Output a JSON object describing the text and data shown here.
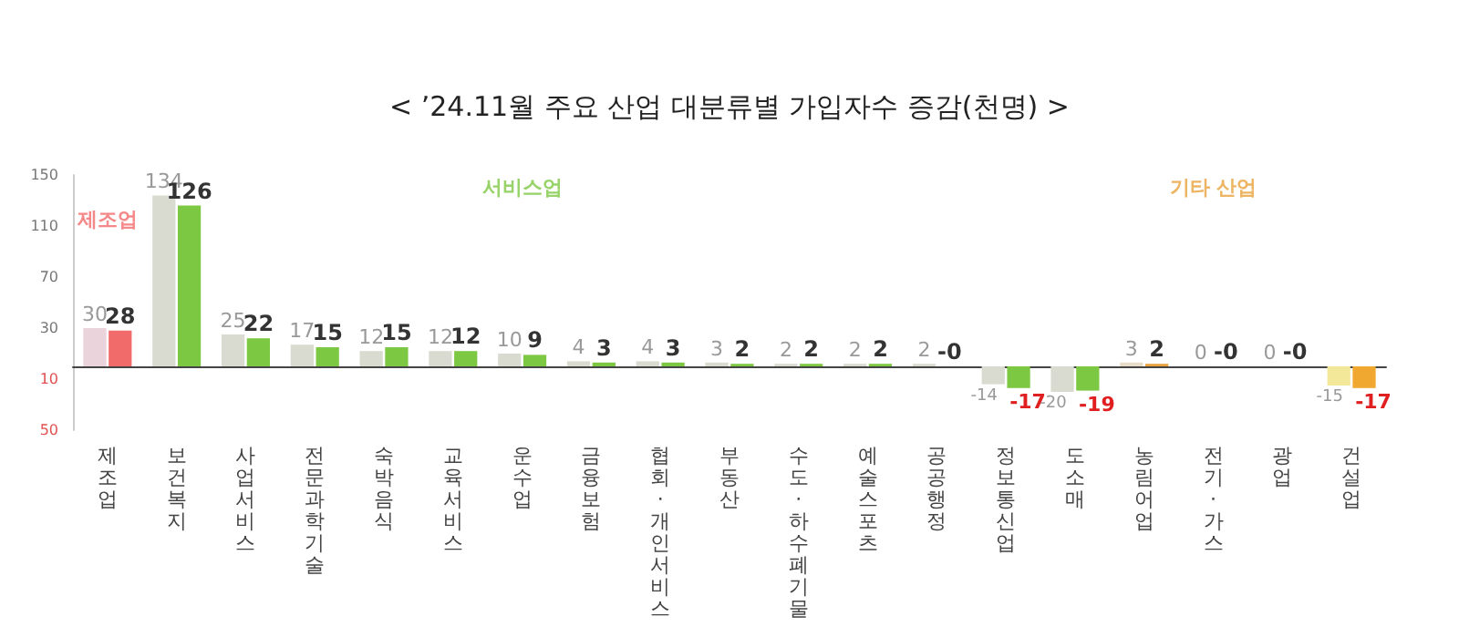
{
  "chart_data": {
    "type": "bar",
    "title": "< ’24.11월 주요 산업 대분류별 가입자수 증감(천명) >",
    "categories": [
      "제조업",
      "보건복지",
      "사업서비스",
      "전문과학기술",
      "숙박음식",
      "교육서비스",
      "운수업",
      "금융보험",
      "협회·개인서비스",
      "부동산",
      "수도·하수폐기물",
      "예술스포츠",
      "공공행정",
      "정보통신업",
      "도소매",
      "농림어업",
      "전기·가스",
      "광업",
      "건설업"
    ],
    "series": [
      {
        "values": [
          30,
          134,
          25,
          17,
          12,
          12,
          10,
          4,
          4,
          3,
          2,
          2,
          2,
          -14,
          -20,
          3,
          0,
          0,
          -15
        ],
        "colors": [
          "#ead3da",
          "#d9dbd0",
          "#d9dbd0",
          "#d9dbd0",
          "#d9dbd0",
          "#d9dbd0",
          "#d9dbd0",
          "#d9dbd0",
          "#d9dbd0",
          "#d9dbd0",
          "#d9dbd0",
          "#d9dbd0",
          "#d9dbd0",
          "#d9dbd0",
          "#d9dbd0",
          "#e6dcc8",
          "#e6dcc8",
          "#e6dcc8",
          "#f3e79a"
        ],
        "value_labels": [
          "30",
          "134",
          "25",
          "17",
          "12",
          "12",
          "10",
          "4",
          "4",
          "3",
          "2",
          "2",
          "2",
          "-14",
          "-20",
          "3",
          "0",
          "0",
          "-15"
        ]
      },
      {
        "values": [
          28,
          126,
          22,
          15,
          15,
          12,
          9,
          3,
          3,
          2,
          2,
          2,
          0,
          -17,
          -19,
          2,
          0,
          0,
          -17
        ],
        "colors": [
          "#f26b6b",
          "#7dc843",
          "#7dc843",
          "#7dc843",
          "#7dc843",
          "#7dc843",
          "#7dc843",
          "#7dc843",
          "#7dc843",
          "#7dc843",
          "#7dc843",
          "#7dc843",
          "#7dc843",
          "#7dc843",
          "#7dc843",
          "#e8a33c",
          "#e8a33c",
          "#e8a33c",
          "#f0a830"
        ],
        "value_labels": [
          "28",
          "126",
          "22",
          "15",
          "15",
          "12",
          "9",
          "3",
          "3",
          "2",
          "2",
          "2",
          "-0",
          "-17",
          "-19",
          "2",
          "-0",
          "-0",
          "-17"
        ]
      }
    ],
    "ylim": [
      -50,
      150
    ],
    "yticks": [
      {
        "value": -50,
        "label": "50"
      },
      {
        "value": -10,
        "label": "10"
      },
      30,
      70,
      110,
      150
    ],
    "annotations": [
      "제조업",
      "서비스업",
      "기타 산업"
    ],
    "grid": false
  }
}
